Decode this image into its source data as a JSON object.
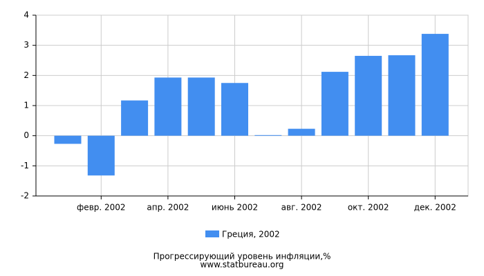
{
  "chart_data": {
    "type": "bar",
    "title": "Прогрессирующий уровень инфляции,%",
    "subtitle": "www.statbureau.org",
    "categories": [
      null,
      "февр. 2002",
      null,
      "апр. 2002",
      null,
      "июнь 2002",
      null,
      "авг. 2002",
      null,
      "окт. 2002",
      null,
      "дек. 2002"
    ],
    "series": [
      {
        "name": "Греция, 2002",
        "color": "#428ef0",
        "values": [
          -0.27,
          -1.32,
          1.17,
          1.93,
          1.93,
          1.75,
          0.02,
          0.23,
          2.12,
          2.65,
          2.67,
          3.38
        ]
      }
    ],
    "ylim": [
      -2,
      4
    ],
    "yticks": [
      -2,
      -1,
      0,
      1,
      2,
      3,
      4
    ],
    "grid": true
  }
}
